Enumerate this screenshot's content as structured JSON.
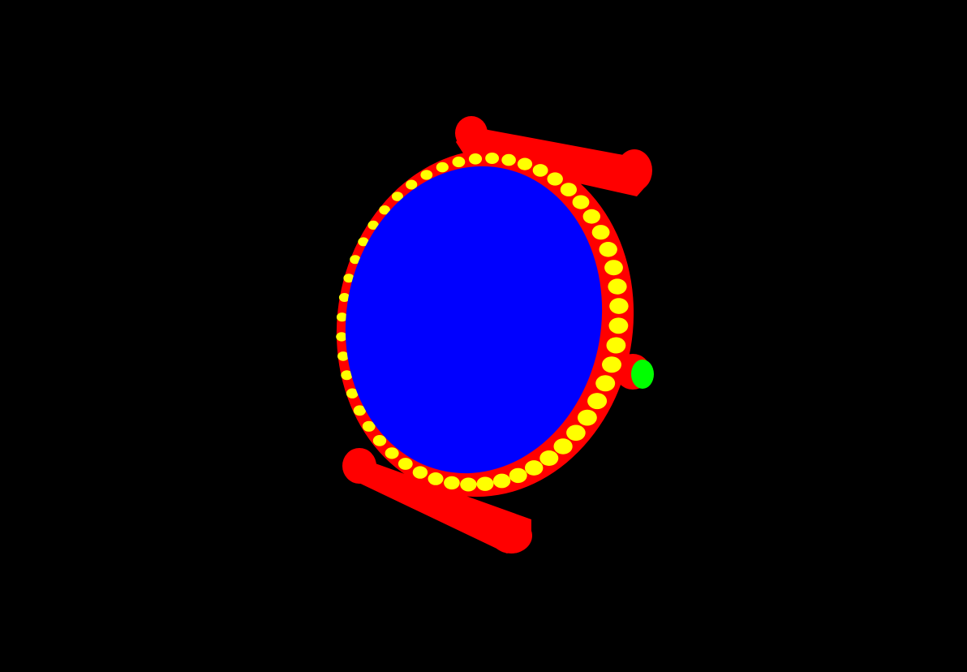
{
  "scene": {
    "subject": "watch",
    "colors": {
      "background": "#000000",
      "case": "#ff0000",
      "dial": "#0000ff",
      "stones": "#ffff00",
      "crown": "#00ff00"
    },
    "bezel_stone_count": 52
  }
}
